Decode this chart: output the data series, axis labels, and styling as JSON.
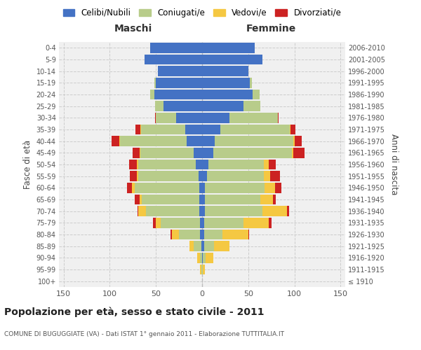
{
  "age_groups": [
    "100+",
    "95-99",
    "90-94",
    "85-89",
    "80-84",
    "75-79",
    "70-74",
    "65-69",
    "60-64",
    "55-59",
    "50-54",
    "45-49",
    "40-44",
    "35-39",
    "30-34",
    "25-29",
    "20-24",
    "15-19",
    "10-14",
    "5-9",
    "0-4"
  ],
  "birth_years": [
    "≤ 1910",
    "1911-1915",
    "1916-1920",
    "1921-1925",
    "1926-1930",
    "1931-1935",
    "1936-1940",
    "1941-1945",
    "1946-1950",
    "1951-1955",
    "1956-1960",
    "1961-1965",
    "1966-1970",
    "1971-1975",
    "1976-1980",
    "1981-1985",
    "1986-1990",
    "1991-1995",
    "1996-2000",
    "2001-2005",
    "2006-2010"
  ],
  "male_celibe": [
    0,
    0,
    0,
    1,
    2,
    2,
    3,
    3,
    3,
    4,
    7,
    9,
    17,
    18,
    28,
    42,
    52,
    50,
    48,
    62,
    56
  ],
  "male_coniugato": [
    0,
    1,
    2,
    8,
    23,
    43,
    58,
    62,
    70,
    65,
    62,
    58,
    72,
    48,
    22,
    9,
    4,
    2,
    0,
    0,
    0
  ],
  "male_vedovo": [
    0,
    1,
    3,
    5,
    8,
    5,
    8,
    3,
    3,
    2,
    2,
    1,
    1,
    1,
    0,
    0,
    0,
    0,
    0,
    0,
    0
  ],
  "male_divorziato": [
    0,
    0,
    0,
    0,
    1,
    3,
    1,
    5,
    5,
    7,
    8,
    7,
    8,
    5,
    1,
    0,
    0,
    0,
    0,
    0,
    0
  ],
  "female_nubile": [
    0,
    0,
    1,
    2,
    2,
    2,
    3,
    3,
    3,
    5,
    7,
    12,
    14,
    20,
    30,
    45,
    55,
    52,
    50,
    65,
    57
  ],
  "female_coniugata": [
    0,
    1,
    3,
    11,
    20,
    43,
    62,
    60,
    65,
    62,
    60,
    85,
    85,
    75,
    52,
    18,
    7,
    2,
    0,
    0,
    0
  ],
  "female_vedova": [
    0,
    2,
    8,
    17,
    28,
    27,
    27,
    14,
    11,
    7,
    5,
    2,
    1,
    1,
    0,
    0,
    0,
    0,
    0,
    0,
    0
  ],
  "female_divorziata": [
    0,
    0,
    0,
    0,
    1,
    3,
    2,
    3,
    7,
    10,
    8,
    12,
    8,
    5,
    1,
    0,
    0,
    0,
    0,
    0,
    0
  ],
  "colors": {
    "celibe": "#4472c4",
    "coniugato": "#b8cc8a",
    "vedovo": "#f5c842",
    "divorziato": "#cc2222"
  },
  "title": "Popolazione per età, sesso e stato civile - 2011",
  "subtitle": "COMUNE DI BUGUGGIATE (VA) - Dati ISTAT 1° gennaio 2011 - Elaborazione TUTTITALIA.IT",
  "maschi_label": "Maschi",
  "femmine_label": "Femmine",
  "ylabel_left": "Fasce di età",
  "ylabel_right": "Anni di nascita",
  "xlim": 155,
  "legend_labels": [
    "Celibi/Nubili",
    "Coniugati/e",
    "Vedovi/e",
    "Divorziati/e"
  ]
}
